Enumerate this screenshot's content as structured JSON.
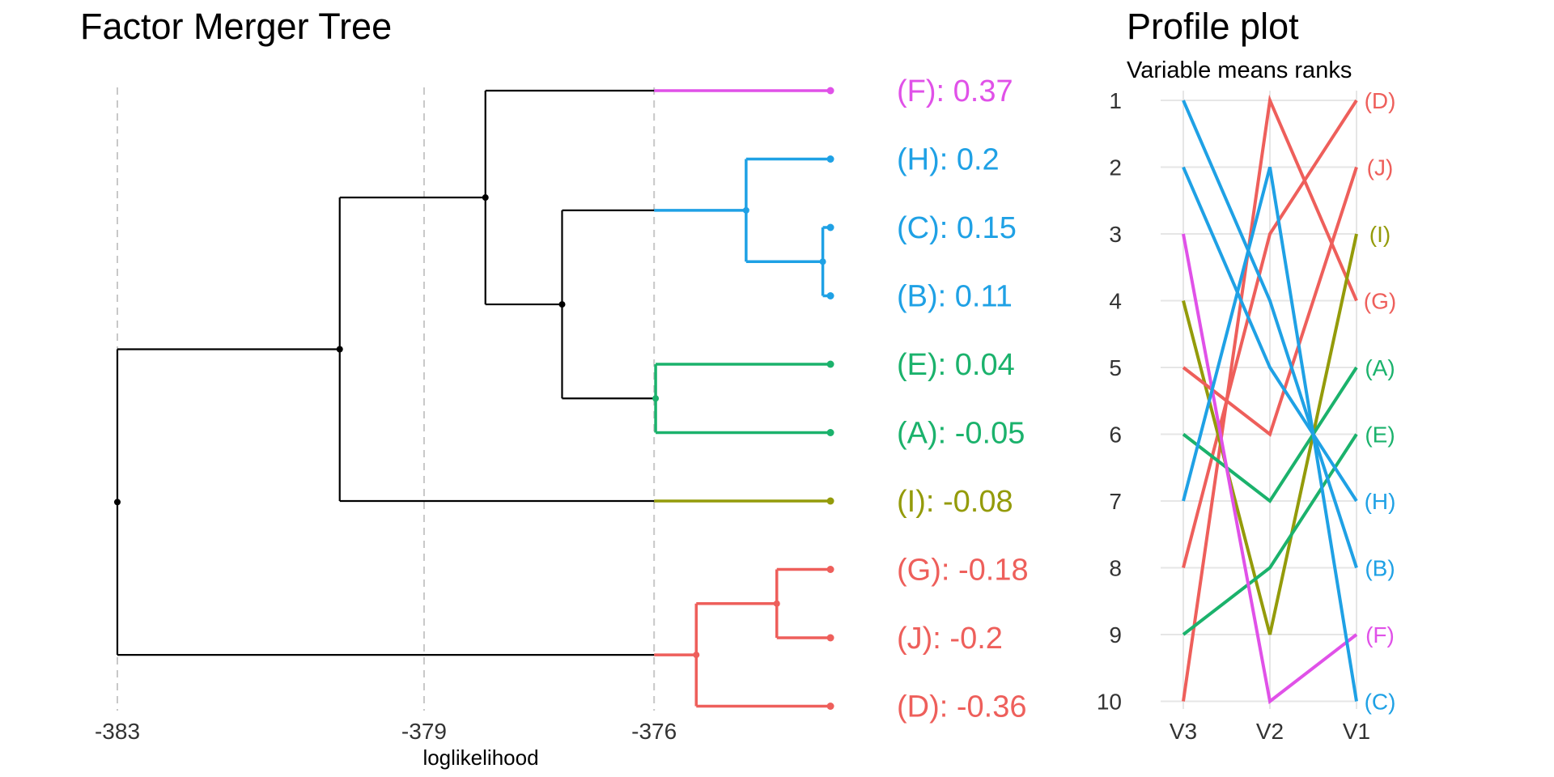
{
  "chart_data": [
    {
      "type": "dendrogram",
      "title": "Factor Merger Tree",
      "xlabel": "loglikelihood",
      "x_ticks": [
        -383,
        -379,
        -376
      ],
      "xlim": [
        -383,
        -373.5
      ],
      "grid": "vertical dashed lines at ticks",
      "leaves": [
        {
          "group": "F",
          "label": "(F): 0.37",
          "value": 0.37,
          "color": "#E051E8"
        },
        {
          "group": "H",
          "label": "(H): 0.2",
          "value": 0.2,
          "color": "#1FA1E5"
        },
        {
          "group": "C",
          "label": "(C): 0.15",
          "value": 0.15,
          "color": "#1FA1E5"
        },
        {
          "group": "B",
          "label": "(B): 0.11",
          "value": 0.11,
          "color": "#1FA1E5"
        },
        {
          "group": "E",
          "label": "(E): 0.04",
          "value": 0.04,
          "color": "#1BB26C"
        },
        {
          "group": "A",
          "label": "(A): -0.05",
          "value": -0.05,
          "color": "#1BB26C"
        },
        {
          "group": "I",
          "label": "(I): -0.08",
          "value": -0.08,
          "color": "#949B0A"
        },
        {
          "group": "G",
          "label": "(G): -0.18",
          "value": -0.18,
          "color": "#EE5F5B"
        },
        {
          "group": "J",
          "label": "(J): -0.2",
          "value": -0.2,
          "color": "#EE5F5B"
        },
        {
          "group": "D",
          "label": "(D): -0.36",
          "value": -0.36,
          "color": "#EE5F5B"
        }
      ],
      "merges": [
        {
          "members": [
            "C",
            "B"
          ],
          "loglik": -373.8,
          "color": "#1FA1E5"
        },
        {
          "members": [
            "H",
            "C",
            "B"
          ],
          "loglik": -374.8,
          "color": "#1FA1E5"
        },
        {
          "members": [
            "E",
            "A"
          ],
          "loglik": -375.98,
          "color": "#1BB26C"
        },
        {
          "members": [
            "G",
            "J"
          ],
          "loglik": -374.4,
          "color": "#EE5F5B"
        },
        {
          "members": [
            "G",
            "J",
            "D"
          ],
          "loglik": -375.45,
          "color": "#EE5F5B"
        },
        {
          "members": [
            "H",
            "C",
            "B",
            "E",
            "A"
          ],
          "loglik": -377.2,
          "color": "#000000"
        },
        {
          "members": [
            "F",
            "H",
            "C",
            "B",
            "E",
            "A"
          ],
          "loglik": -378.2,
          "color": "#000000"
        },
        {
          "members": [
            "F",
            "H",
            "C",
            "B",
            "E",
            "A",
            "I"
          ],
          "loglik": -380.1,
          "color": "#000000"
        },
        {
          "members": [
            "F",
            "H",
            "C",
            "B",
            "E",
            "A",
            "I",
            "G",
            "J",
            "D"
          ],
          "loglik": -383.0,
          "color": "#000000"
        }
      ],
      "cut_at": -376
    },
    {
      "type": "line",
      "title": "Profile plot",
      "subtitle": "Variable means ranks",
      "x": [
        "V3",
        "V2",
        "V1"
      ],
      "y_ticks": [
        1,
        2,
        3,
        4,
        5,
        6,
        7,
        8,
        9,
        10
      ],
      "ylim": [
        1,
        10
      ],
      "y_reversed": true,
      "series": [
        {
          "name": "(D)",
          "values": [
            10,
            1,
            4
          ],
          "color": "#EE5F5B"
        },
        {
          "name": "(J)",
          "values": [
            8,
            3,
            1
          ],
          "color": "#EE5F5B"
        },
        {
          "name": "(I)",
          "values": [
            4,
            9,
            3
          ],
          "color": "#949B0A"
        },
        {
          "name": "(G)",
          "values": [
            5,
            6,
            2
          ],
          "color": "#EE5F5B"
        },
        {
          "name": "(A)",
          "values": [
            6,
            7,
            5
          ],
          "color": "#1BB26C"
        },
        {
          "name": "(E)",
          "values": [
            9,
            8,
            6
          ],
          "color": "#1BB26C"
        },
        {
          "name": "(H)",
          "values": [
            2,
            5,
            7
          ],
          "color": "#1FA1E5"
        },
        {
          "name": "(B)",
          "values": [
            1,
            4,
            8
          ],
          "color": "#1FA1E5"
        },
        {
          "name": "(F)",
          "values": [
            3,
            10,
            9
          ],
          "color": "#E051E8"
        },
        {
          "name": "(C)",
          "values": [
            7,
            2,
            10
          ],
          "color": "#1FA1E5"
        }
      ],
      "right_labels_order": [
        "(D)",
        "(J)",
        "(I)",
        "(G)",
        "(A)",
        "(E)",
        "(H)",
        "(B)",
        "(F)",
        "(C)"
      ],
      "grid": true
    }
  ]
}
